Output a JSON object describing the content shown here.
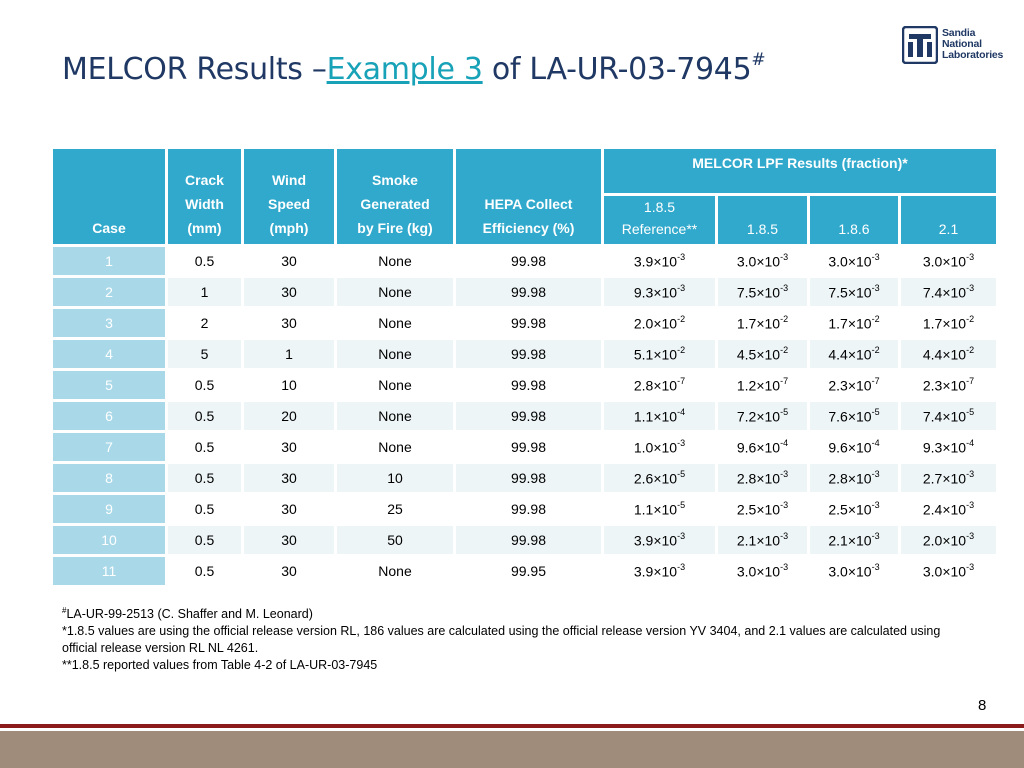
{
  "title": {
    "prefix": "MELCOR Results –",
    "link": "Example 3",
    "suffix": " of LA-UR-03-7945",
    "sup": "#"
  },
  "logo": {
    "line1": "Sandia",
    "line2": "National",
    "line3": "Laboratories",
    "colors": {
      "mark": "#1f3864"
    }
  },
  "table": {
    "headers": {
      "case": "Case",
      "crack": [
        "Crack",
        "Width",
        "(mm)"
      ],
      "wind": [
        "Wind",
        "Speed",
        "(mph)"
      ],
      "smoke": [
        "Smoke",
        "Generated",
        "by Fire (kg)"
      ],
      "hepa": [
        "HEPA Collect",
        "Efficiency (%)"
      ],
      "lpf_group": "MELCOR LPF Results (fraction)*",
      "lpf_sub": [
        "1.8.5",
        "Reference**",
        "1.8.5",
        "1.8.6",
        "2.1"
      ]
    },
    "rows": [
      {
        "case": "1",
        "crack": "0.5",
        "wind": "30",
        "smoke": "None",
        "hepa": "99.98",
        "r": [
          [
            "3.9×10",
            "-3"
          ],
          [
            "3.0×10",
            "-3"
          ],
          [
            "3.0×10",
            "-3"
          ],
          [
            "3.0×10",
            "-3"
          ]
        ]
      },
      {
        "case": "2",
        "crack": "1",
        "wind": "30",
        "smoke": "None",
        "hepa": "99.98",
        "r": [
          [
            "9.3×10",
            "-3"
          ],
          [
            "7.5×10",
            "-3"
          ],
          [
            "7.5×10",
            "-3"
          ],
          [
            "7.4×10",
            "-3"
          ]
        ]
      },
      {
        "case": "3",
        "crack": "2",
        "wind": "30",
        "smoke": "None",
        "hepa": "99.98",
        "r": [
          [
            "2.0×10",
            "-2"
          ],
          [
            "1.7×10",
            "-2"
          ],
          [
            "1.7×10",
            "-2"
          ],
          [
            "1.7×10",
            "-2"
          ]
        ]
      },
      {
        "case": "4",
        "crack": "5",
        "wind": "1",
        "smoke": "None",
        "hepa": "99.98",
        "r": [
          [
            "5.1×10",
            "-2"
          ],
          [
            "4.5×10",
            "-2"
          ],
          [
            "4.4×10",
            "-2"
          ],
          [
            "4.4×10",
            "-2"
          ]
        ]
      },
      {
        "case": "5",
        "crack": "0.5",
        "wind": "10",
        "smoke": "None",
        "hepa": "99.98",
        "r": [
          [
            "2.8×10",
            "-7"
          ],
          [
            "1.2×10",
            "-7"
          ],
          [
            "2.3×10",
            "-7"
          ],
          [
            "2.3×10",
            "-7"
          ]
        ]
      },
      {
        "case": "6",
        "crack": "0.5",
        "wind": "20",
        "smoke": "None",
        "hepa": "99.98",
        "r": [
          [
            "1.1×10",
            "-4"
          ],
          [
            "7.2×10",
            "-5"
          ],
          [
            "7.6×10",
            "-5"
          ],
          [
            "7.4×10",
            "-5"
          ]
        ]
      },
      {
        "case": "7",
        "crack": "0.5",
        "wind": "30",
        "smoke": "None",
        "hepa": "99.98",
        "r": [
          [
            "1.0×10",
            "-3"
          ],
          [
            "9.6×10",
            "-4"
          ],
          [
            "9.6×10",
            "-4"
          ],
          [
            "9.3×10",
            "-4"
          ]
        ]
      },
      {
        "case": "8",
        "crack": "0.5",
        "wind": "30",
        "smoke": "10",
        "hepa": "99.98",
        "r": [
          [
            "2.6×10",
            "-5"
          ],
          [
            "2.8×10",
            "-3"
          ],
          [
            "2.8×10",
            "-3"
          ],
          [
            "2.7×10",
            "-3"
          ]
        ]
      },
      {
        "case": "9",
        "crack": "0.5",
        "wind": "30",
        "smoke": "25",
        "hepa": "99.98",
        "r": [
          [
            "1.1×10",
            "-5"
          ],
          [
            "2.5×10",
            "-3"
          ],
          [
            "2.5×10",
            "-3"
          ],
          [
            "2.4×10",
            "-3"
          ]
        ]
      },
      {
        "case": "10",
        "crack": "0.5",
        "wind": "30",
        "smoke": "50",
        "hepa": "99.98",
        "r": [
          [
            "3.9×10",
            "-3"
          ],
          [
            "2.1×10",
            "-3"
          ],
          [
            "2.1×10",
            "-3"
          ],
          [
            "2.0×10",
            "-3"
          ]
        ]
      },
      {
        "case": "11",
        "crack": "0.5",
        "wind": "30",
        "smoke": "None",
        "hepa": "99.95",
        "r": [
          [
            "3.9×10",
            "-3"
          ],
          [
            "3.0×10",
            "-3"
          ],
          [
            "3.0×10",
            "-3"
          ],
          [
            "3.0×10",
            "-3"
          ]
        ]
      }
    ]
  },
  "footnotes": {
    "n1_sup": "#",
    "n1": "LA-UR-99-2513 (C. Shaffer and M. Leonard)",
    "n2": "*1.8.5 values are using the official release version RL, 186 values are calculated using the official release version YV 3404, and 2.1 values are calculated using official release version RL NL 4261.",
    "n3": "**1.8.5 reported values from Table 4-2 of LA-UR-03-7945"
  },
  "page_number": "8",
  "colors": {
    "title": "#1f3864",
    "link": "#17a2b8",
    "header_bg": "#31a9cc",
    "case_bg": "#a9d8e8",
    "row_alt": "#eef5f7",
    "bar_red": "#8b1a1a",
    "bar_gray": "#a08c7b"
  }
}
